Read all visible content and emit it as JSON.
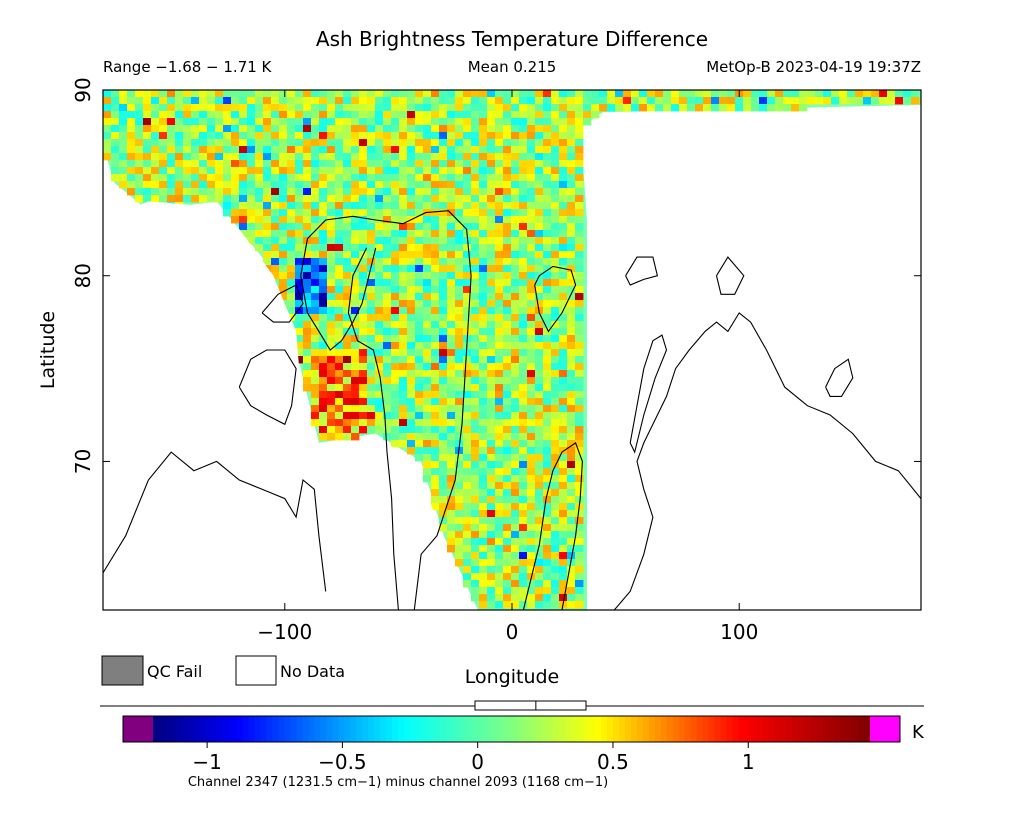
{
  "chart_data": {
    "type": "heatmap",
    "title": "Ash Brightness Temperature Difference",
    "range_label": "Range −1.68 − 1.71 K",
    "mean_label": "Mean 0.215",
    "satellite_label": "MetOp-B 2023-04-19 19:37Z",
    "xlabel": "Longitude",
    "ylabel": "Latitude",
    "xlim": [
      -180,
      180
    ],
    "ylim": [
      62,
      90
    ],
    "x_ticks": [
      {
        "value": -100,
        "label": "−100"
      },
      {
        "value": 0,
        "label": "0"
      },
      {
        "value": 100,
        "label": "100"
      }
    ],
    "y_ticks": [
      {
        "value": 70,
        "label": "70"
      },
      {
        "value": 80,
        "label": "80"
      },
      {
        "value": 90,
        "label": "90"
      }
    ],
    "legend": [
      {
        "label": "QC Fail",
        "color": "#7f7f7f"
      },
      {
        "label": "No Data",
        "color": "#ffffff"
      }
    ],
    "colorbar": {
      "range": [
        -1.2,
        1.45
      ],
      "under_color": "#800080",
      "over_color": "#ff00ff",
      "unit": "K",
      "ticks": [
        {
          "value": -1,
          "label": "−1"
        },
        {
          "value": -0.5,
          "label": "−0.5"
        },
        {
          "value": 0,
          "label": "0"
        },
        {
          "value": 0.5,
          "label": "0.5"
        },
        {
          "value": 1,
          "label": "1"
        }
      ],
      "mean_marker": 0.215,
      "caption": "Channel 2347 (1231.5 cm−1) minus channel 2093 (1168 cm−1)"
    },
    "coverage_note": "swath coverage shown as colored cells; white areas have no data"
  }
}
